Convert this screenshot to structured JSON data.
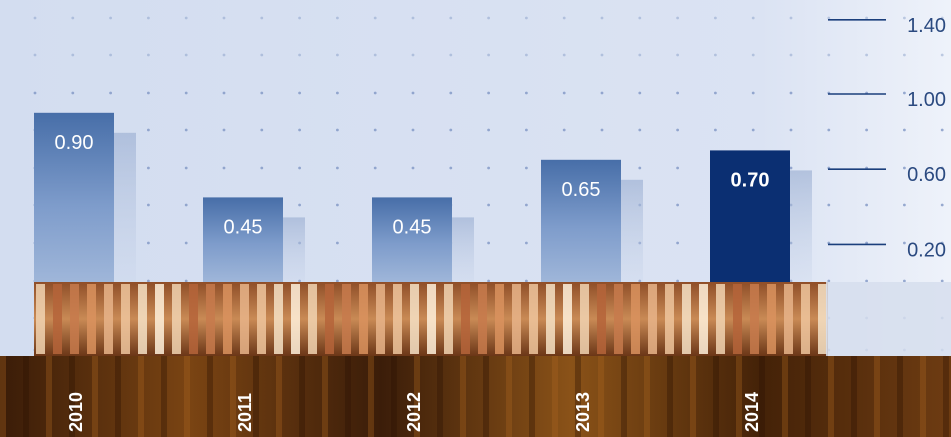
{
  "chart_data": {
    "type": "bar",
    "categories": [
      "2010",
      "2011",
      "2012",
      "2013",
      "2014"
    ],
    "values": [
      0.9,
      0.45,
      0.45,
      0.65,
      0.7
    ],
    "value_labels": [
      "0.90",
      "0.45",
      "0.45",
      "0.65",
      "0.70"
    ],
    "highlight_index": 4,
    "y_ticks": [
      "0.20",
      "0.60",
      "1.00",
      "1.40"
    ],
    "y_tick_values": [
      0.2,
      0.6,
      1.0,
      1.4
    ],
    "ylim": [
      0,
      1.4
    ],
    "grid": "dotted",
    "colors": {
      "bar": "#5b7eb3",
      "bar_highlight": "#0b2f72",
      "axis": "#1b3f7c",
      "label": "#ffffff",
      "tick_text": "#2b4a80",
      "background": "#d8e2f2"
    }
  }
}
